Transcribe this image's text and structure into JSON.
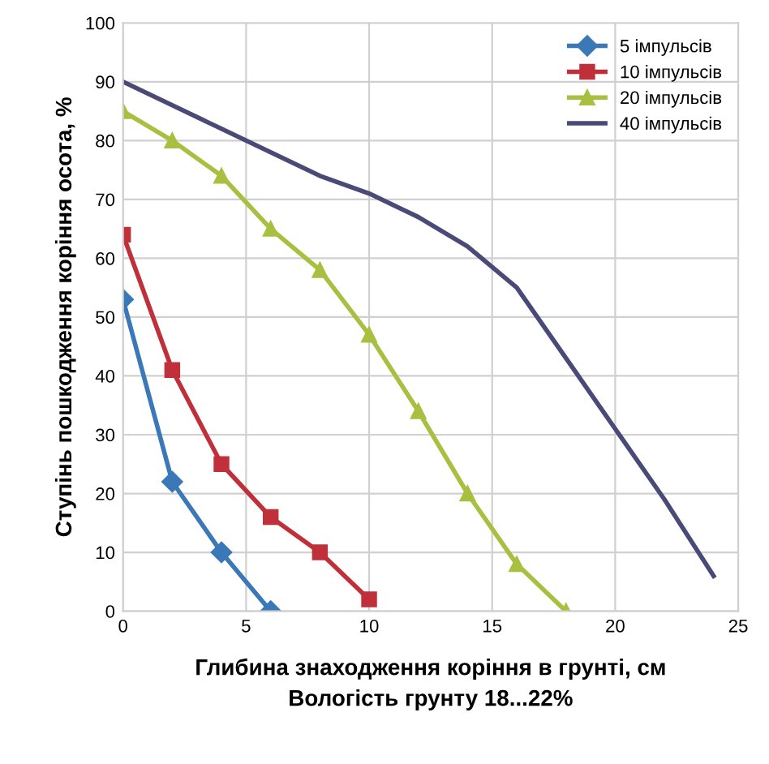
{
  "chart_data": {
    "type": "line",
    "xlabel": "Глибина знаходження коріння в грунті, см\nВологість грунту 18...22%",
    "ylabel": "Ступінь пошкодження коріння осота, %",
    "xlim": [
      0,
      25
    ],
    "xticks": [
      0,
      5,
      10,
      15,
      20,
      25
    ],
    "ylim": [
      0,
      100
    ],
    "yticks": [
      0,
      10,
      20,
      30,
      40,
      50,
      60,
      70,
      80,
      90,
      100
    ],
    "grid": true,
    "legend": "top right",
    "series": [
      {
        "name": "5 імпульсів",
        "color": "#3a78b8",
        "marker": "diamond",
        "x": [
          0,
          2,
          4,
          6
        ],
        "values": [
          53,
          22,
          10,
          0
        ]
      },
      {
        "name": "10 імпульсів",
        "color": "#c0303a",
        "marker": "square",
        "x": [
          0,
          2,
          4,
          6,
          8,
          10
        ],
        "values": [
          64,
          41,
          25,
          16,
          10,
          2
        ]
      },
      {
        "name": "20 імпульсів",
        "color": "#a8c040",
        "marker": "triangle",
        "x": [
          0,
          2,
          4,
          6,
          8,
          10,
          12,
          14,
          16,
          18
        ],
        "values": [
          85,
          80,
          74,
          65,
          58,
          47,
          34,
          20,
          8,
          0
        ]
      },
      {
        "name": "40 імпульсів",
        "color": "#4a4a78",
        "marker": "none",
        "x": [
          0,
          2,
          4,
          6,
          8,
          10,
          12,
          14,
          16,
          18,
          20,
          22,
          24
        ],
        "values": [
          90,
          86,
          82,
          78,
          74,
          71,
          67,
          62,
          55,
          43,
          31,
          19,
          6
        ]
      }
    ]
  }
}
